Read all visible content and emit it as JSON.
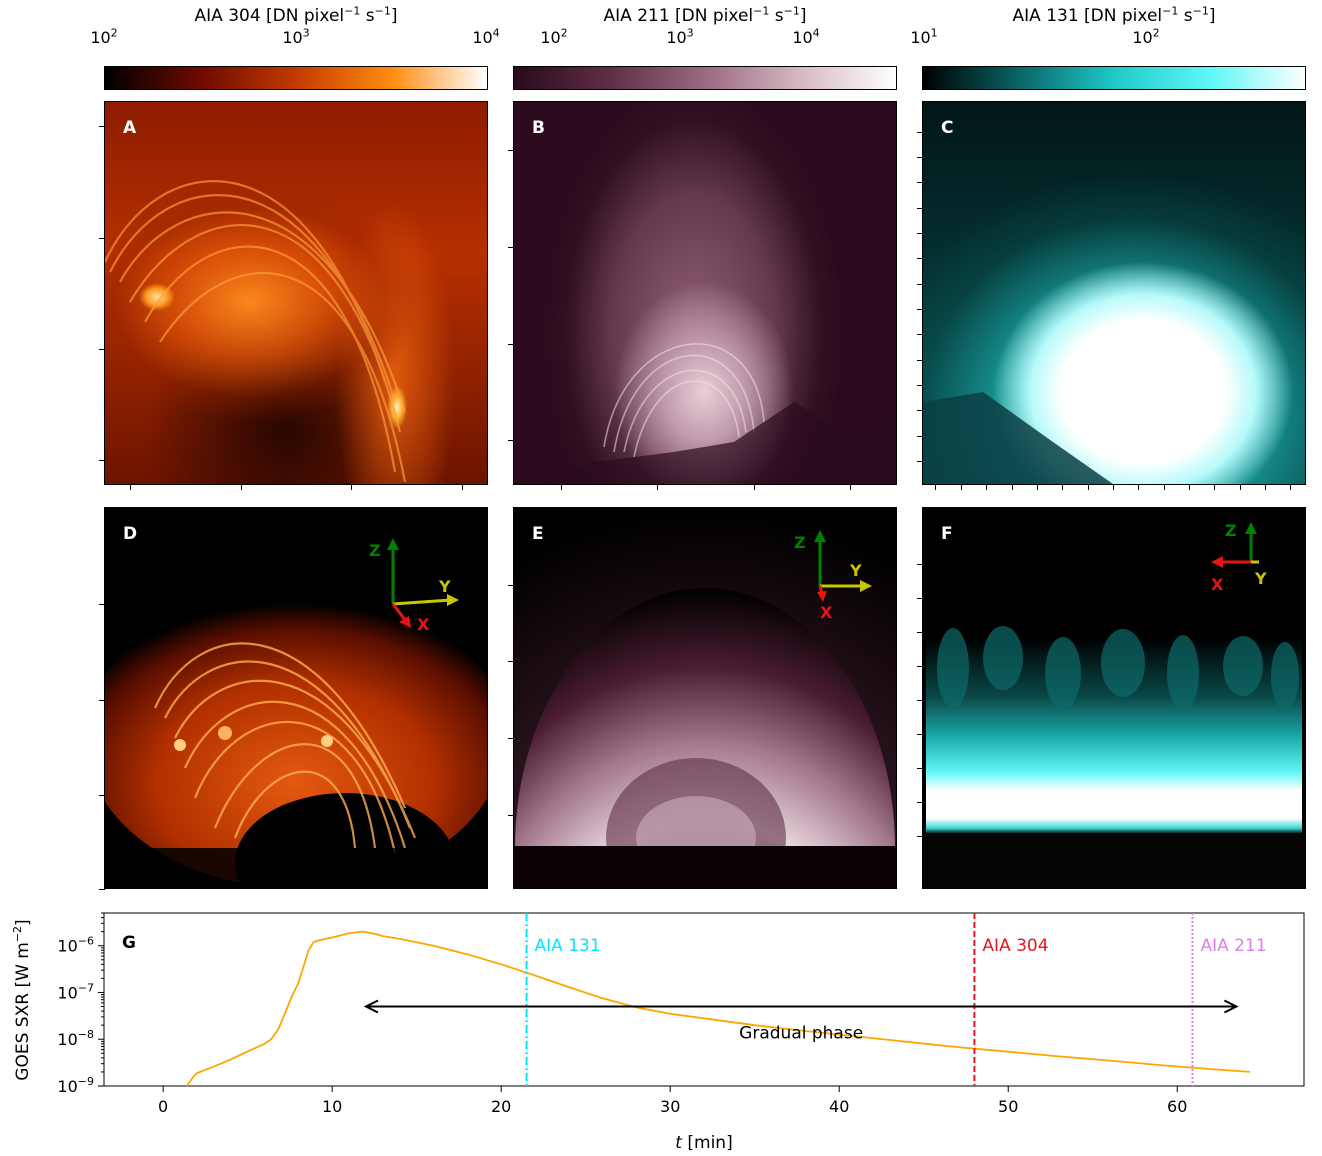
{
  "colorbars": [
    {
      "title_main": "AIA 304 [DN pixel",
      "title_exp1": "−1",
      "title_mid": " s",
      "title_exp2": "−1",
      "title_end": "]",
      "ticks": [
        {
          "base": "10",
          "exp": "2"
        },
        {
          "base": "10",
          "exp": "3"
        },
        {
          "base": "10",
          "exp": "4"
        }
      ],
      "colors": [
        "#000000",
        "#6e0a00",
        "#c43a00",
        "#ff8c10",
        "#ffffff"
      ]
    },
    {
      "title_main": "AIA 211 [DN pixel",
      "title_exp1": "−1",
      "title_mid": " s",
      "title_exp2": "−1",
      "title_end": "]",
      "ticks": [
        {
          "base": "10",
          "exp": "2"
        },
        {
          "base": "10",
          "exp": "3"
        },
        {
          "base": "10",
          "exp": "4"
        }
      ],
      "colors": [
        "#2a0a1c",
        "#5e2e44",
        "#9a6a80",
        "#d6b8c4",
        "#ffffff"
      ]
    },
    {
      "title_main": "AIA 131 [DN pixel",
      "title_exp1": "−1",
      "title_mid": " s",
      "title_exp2": "−1",
      "title_end": "]",
      "ticks": [
        {
          "base": "10",
          "exp": "1"
        },
        {
          "base": "10",
          "exp": "2"
        }
      ],
      "colors": [
        "#000000",
        "#0a6466",
        "#1fc8c8",
        "#5ef6f6",
        "#ffffff"
      ]
    }
  ],
  "panels": [
    {
      "label": "A"
    },
    {
      "label": "B"
    },
    {
      "label": "C"
    },
    {
      "label": "D"
    },
    {
      "label": "E"
    },
    {
      "label": "F"
    }
  ],
  "axes_indicators": {
    "D": {
      "z": "Z",
      "y": "Y",
      "x": "X"
    },
    "E": {
      "z": "Z",
      "y": "Y",
      "x": "X"
    },
    "F": {
      "z": "Z",
      "y": "Y",
      "x": "X"
    }
  },
  "colors": {
    "goes_line": "#ffa500",
    "aia131_line": "#00e5ff",
    "aia304_line": "#e8141e",
    "aia211_line": "#e07ee8",
    "axis_z": "#008000",
    "axis_y": "#c8c800",
    "axis_x": "#e81414"
  },
  "chart_data": {
    "type": "line",
    "panel_label": "G",
    "xlabel_italic": "t",
    "xlabel_rest": " [min]",
    "ylabel": "GOES SXR [W m",
    "ylabel_exp": "−2",
    "ylabel_end": "]",
    "yscale": "log",
    "xlim": [
      -3.5,
      67.5
    ],
    "ylim": [
      1e-09,
      5e-06
    ],
    "x_ticks": [
      0,
      10,
      20,
      30,
      40,
      50,
      60
    ],
    "y_ticks": [
      {
        "value": 1e-09,
        "label": "10",
        "exp": "−9"
      },
      {
        "value": 1e-08,
        "label": "10",
        "exp": "−8"
      },
      {
        "value": 1e-07,
        "label": "10",
        "exp": "−7"
      },
      {
        "value": 1e-06,
        "label": "10",
        "exp": "−6"
      }
    ],
    "series": [
      {
        "x": [
          1.4,
          1.8,
          2.0,
          3.0,
          4.0,
          5.0,
          6.0,
          6.4,
          6.8,
          7.2,
          7.6,
          8.0,
          8.3,
          8.6,
          8.9,
          9.2,
          10.0,
          11.0,
          11.8,
          12.5,
          13.0,
          14.0,
          16.0,
          18.0,
          20.0,
          22.0,
          24.0,
          26.0,
          28.0,
          30.0,
          32.0,
          35.0,
          38.0,
          41.0,
          44.0,
          47.0,
          50.0,
          53.0,
          56.0,
          59.0,
          62.0,
          64.3
        ],
        "y": [
          1e-09,
          1.6e-09,
          1.9e-09,
          2.6e-09,
          3.7e-09,
          5.5e-09,
          8e-09,
          1e-08,
          1.6e-08,
          3.5e-08,
          8e-08,
          1.6e-07,
          3.5e-07,
          8e-07,
          1.2e-06,
          1.3e-06,
          1.5e-06,
          1.85e-06,
          2e-06,
          1.8e-06,
          1.6e-06,
          1.4e-06,
          1e-06,
          6.5e-07,
          4e-07,
          2.3e-07,
          1.3e-07,
          7.5e-08,
          4.8e-08,
          3.5e-08,
          2.8e-08,
          2e-08,
          1.5e-08,
          1.15e-08,
          8.8e-09,
          6.8e-09,
          5.4e-09,
          4.3e-09,
          3.5e-09,
          2.8e-09,
          2.3e-09,
          2e-09
        ]
      }
    ],
    "vlines": [
      {
        "x": 21.5,
        "label": "AIA 131",
        "style": "dashdot",
        "color_key": "aia131_line"
      },
      {
        "x": 48.0,
        "label": "AIA 304",
        "style": "dashed",
        "color_key": "aia304_line"
      },
      {
        "x": 60.9,
        "label": "AIA 211",
        "style": "dotted",
        "color_key": "aia211_line"
      }
    ],
    "arrow": {
      "x_start": 12.0,
      "x_end": 63.5,
      "y": 5e-08,
      "label": "Gradual phase"
    }
  }
}
